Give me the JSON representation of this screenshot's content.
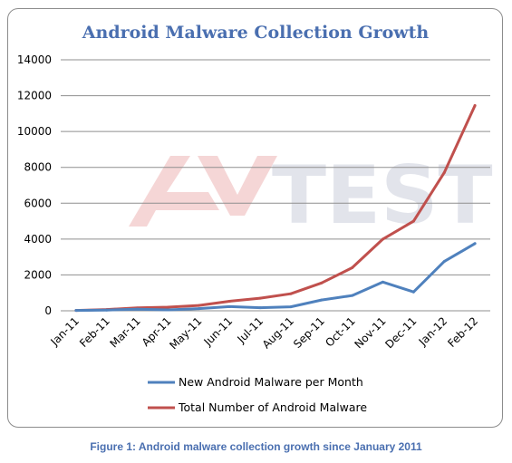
{
  "chart_data": {
    "type": "line",
    "title": "Android Malware Collection Growth",
    "categories": [
      "Jan-11",
      "Feb-11",
      "Mar-11",
      "Apr-11",
      "May-11",
      "Jun-11",
      "Jul-11",
      "Aug-11",
      "Sep-11",
      "Oct-11",
      "Nov-11",
      "Dec-11",
      "Jan-12",
      "Feb-12"
    ],
    "yticks": [
      "0",
      "2000",
      "4000",
      "6000",
      "8000",
      "10000",
      "12000",
      "14000"
    ],
    "ylim": [
      0,
      14000
    ],
    "grid": true,
    "legend_position": "bottom",
    "series": [
      {
        "name": "New Android Malware per Month",
        "color": "#4f81bd",
        "values": [
          20,
          40,
          90,
          50,
          120,
          230,
          170,
          220,
          600,
          850,
          1600,
          1050,
          2750,
          3750
        ]
      },
      {
        "name": "Total Number of Android Malware",
        "color": "#c0504d",
        "values": [
          20,
          70,
          160,
          200,
          300,
          530,
          700,
          950,
          1550,
          2400,
          4000,
          5000,
          7700,
          11450
        ]
      }
    ]
  },
  "watermark": {
    "brand": "AV-TEST",
    "accent_color": "#f2c7c7",
    "text_color": "#d7dbe4"
  },
  "caption": "Figure 1: Android malware collection growth since January 2011"
}
